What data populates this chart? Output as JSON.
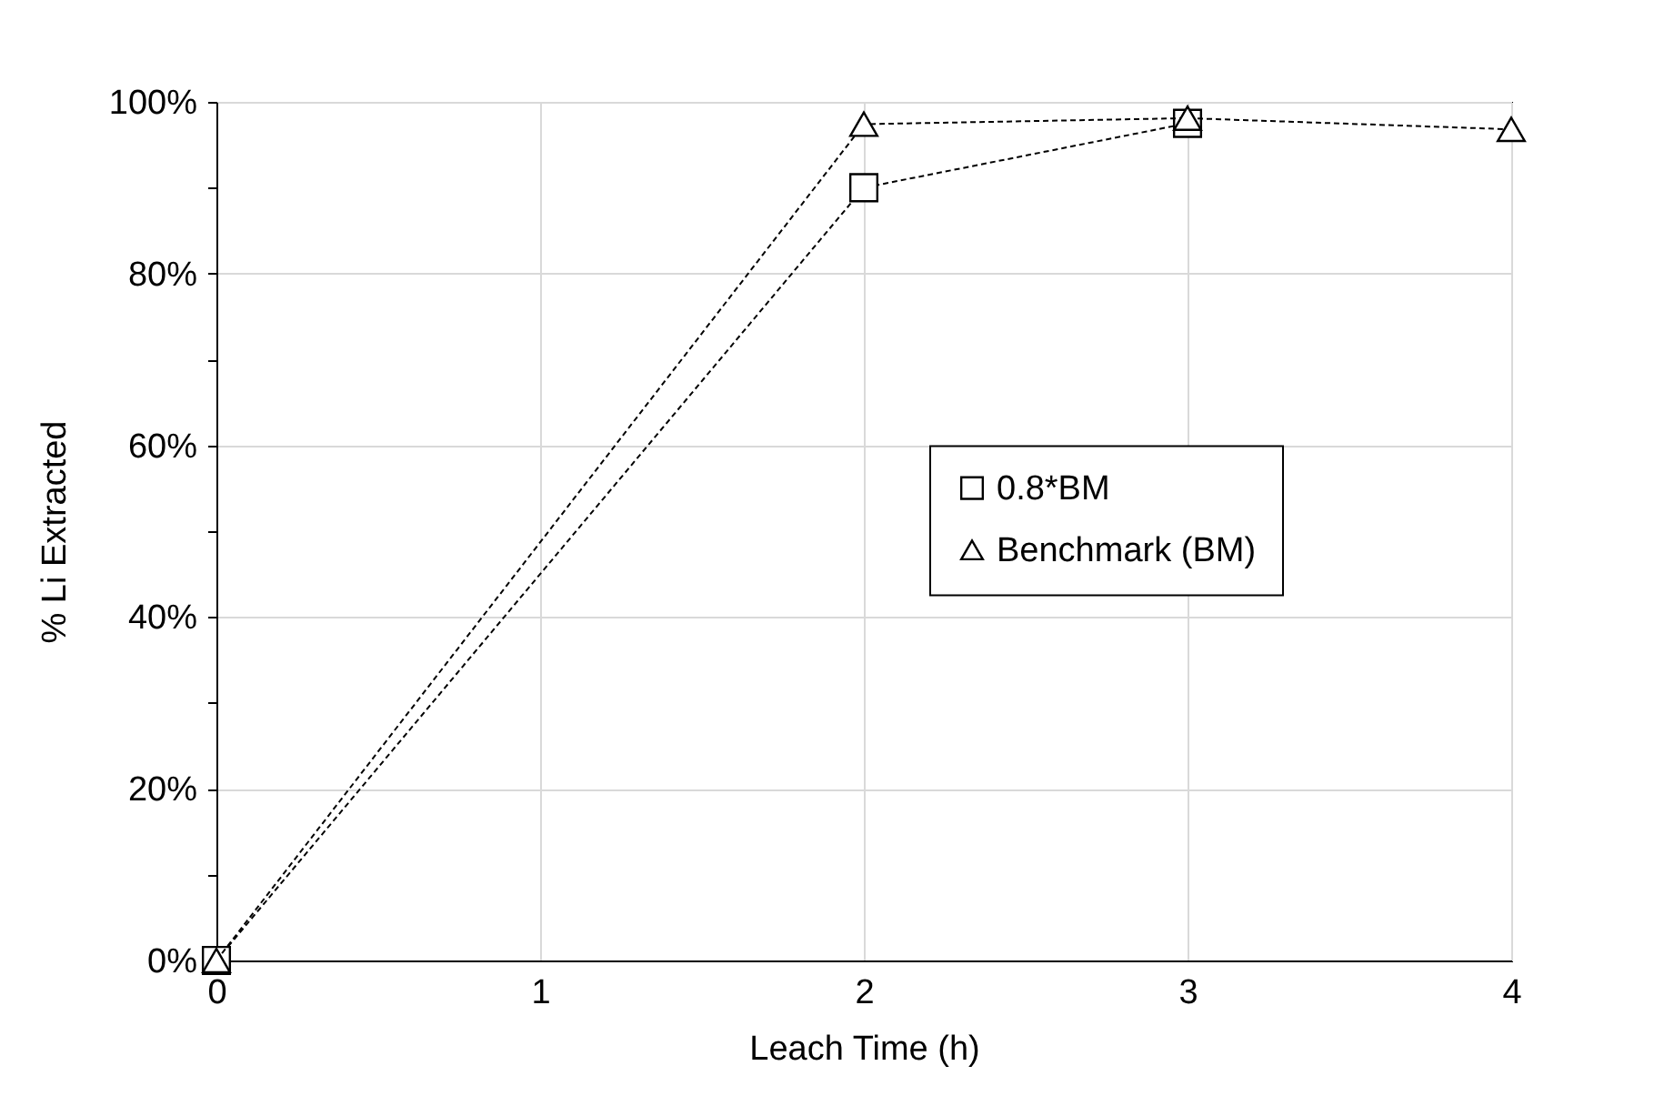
{
  "chart_data": {
    "type": "line",
    "xlabel": "Leach Time (h)",
    "ylabel": "% Li Extracted",
    "xlim": [
      0,
      4
    ],
    "xticks": [
      0,
      1,
      2,
      3,
      4
    ],
    "ylim": [
      0,
      100
    ],
    "yticks": [
      {
        "value": 0,
        "label": "0%"
      },
      {
        "value": 10,
        "label": null
      },
      {
        "value": 20,
        "label": "20%"
      },
      {
        "value": 30,
        "label": null
      },
      {
        "value": 40,
        "label": "40%"
      },
      {
        "value": 50,
        "label": null
      },
      {
        "value": 60,
        "label": "60%"
      },
      {
        "value": 70,
        "label": null
      },
      {
        "value": 80,
        "label": "80%"
      },
      {
        "value": 90,
        "label": null
      },
      {
        "value": 100,
        "label": "100%"
      }
    ],
    "grid": true,
    "legend": "right",
    "line_style": "dashed",
    "series": [
      {
        "name": "0.8*BM",
        "color": "#000000",
        "marker": "square",
        "x": [
          0,
          2,
          3
        ],
        "values": [
          0,
          90,
          97.5
        ]
      },
      {
        "name": "Benchmark (BM)",
        "color": "#000000",
        "marker": "triangle",
        "x": [
          0,
          2,
          3,
          4
        ],
        "values": [
          0,
          97.4,
          98.1,
          96.8
        ]
      }
    ]
  }
}
